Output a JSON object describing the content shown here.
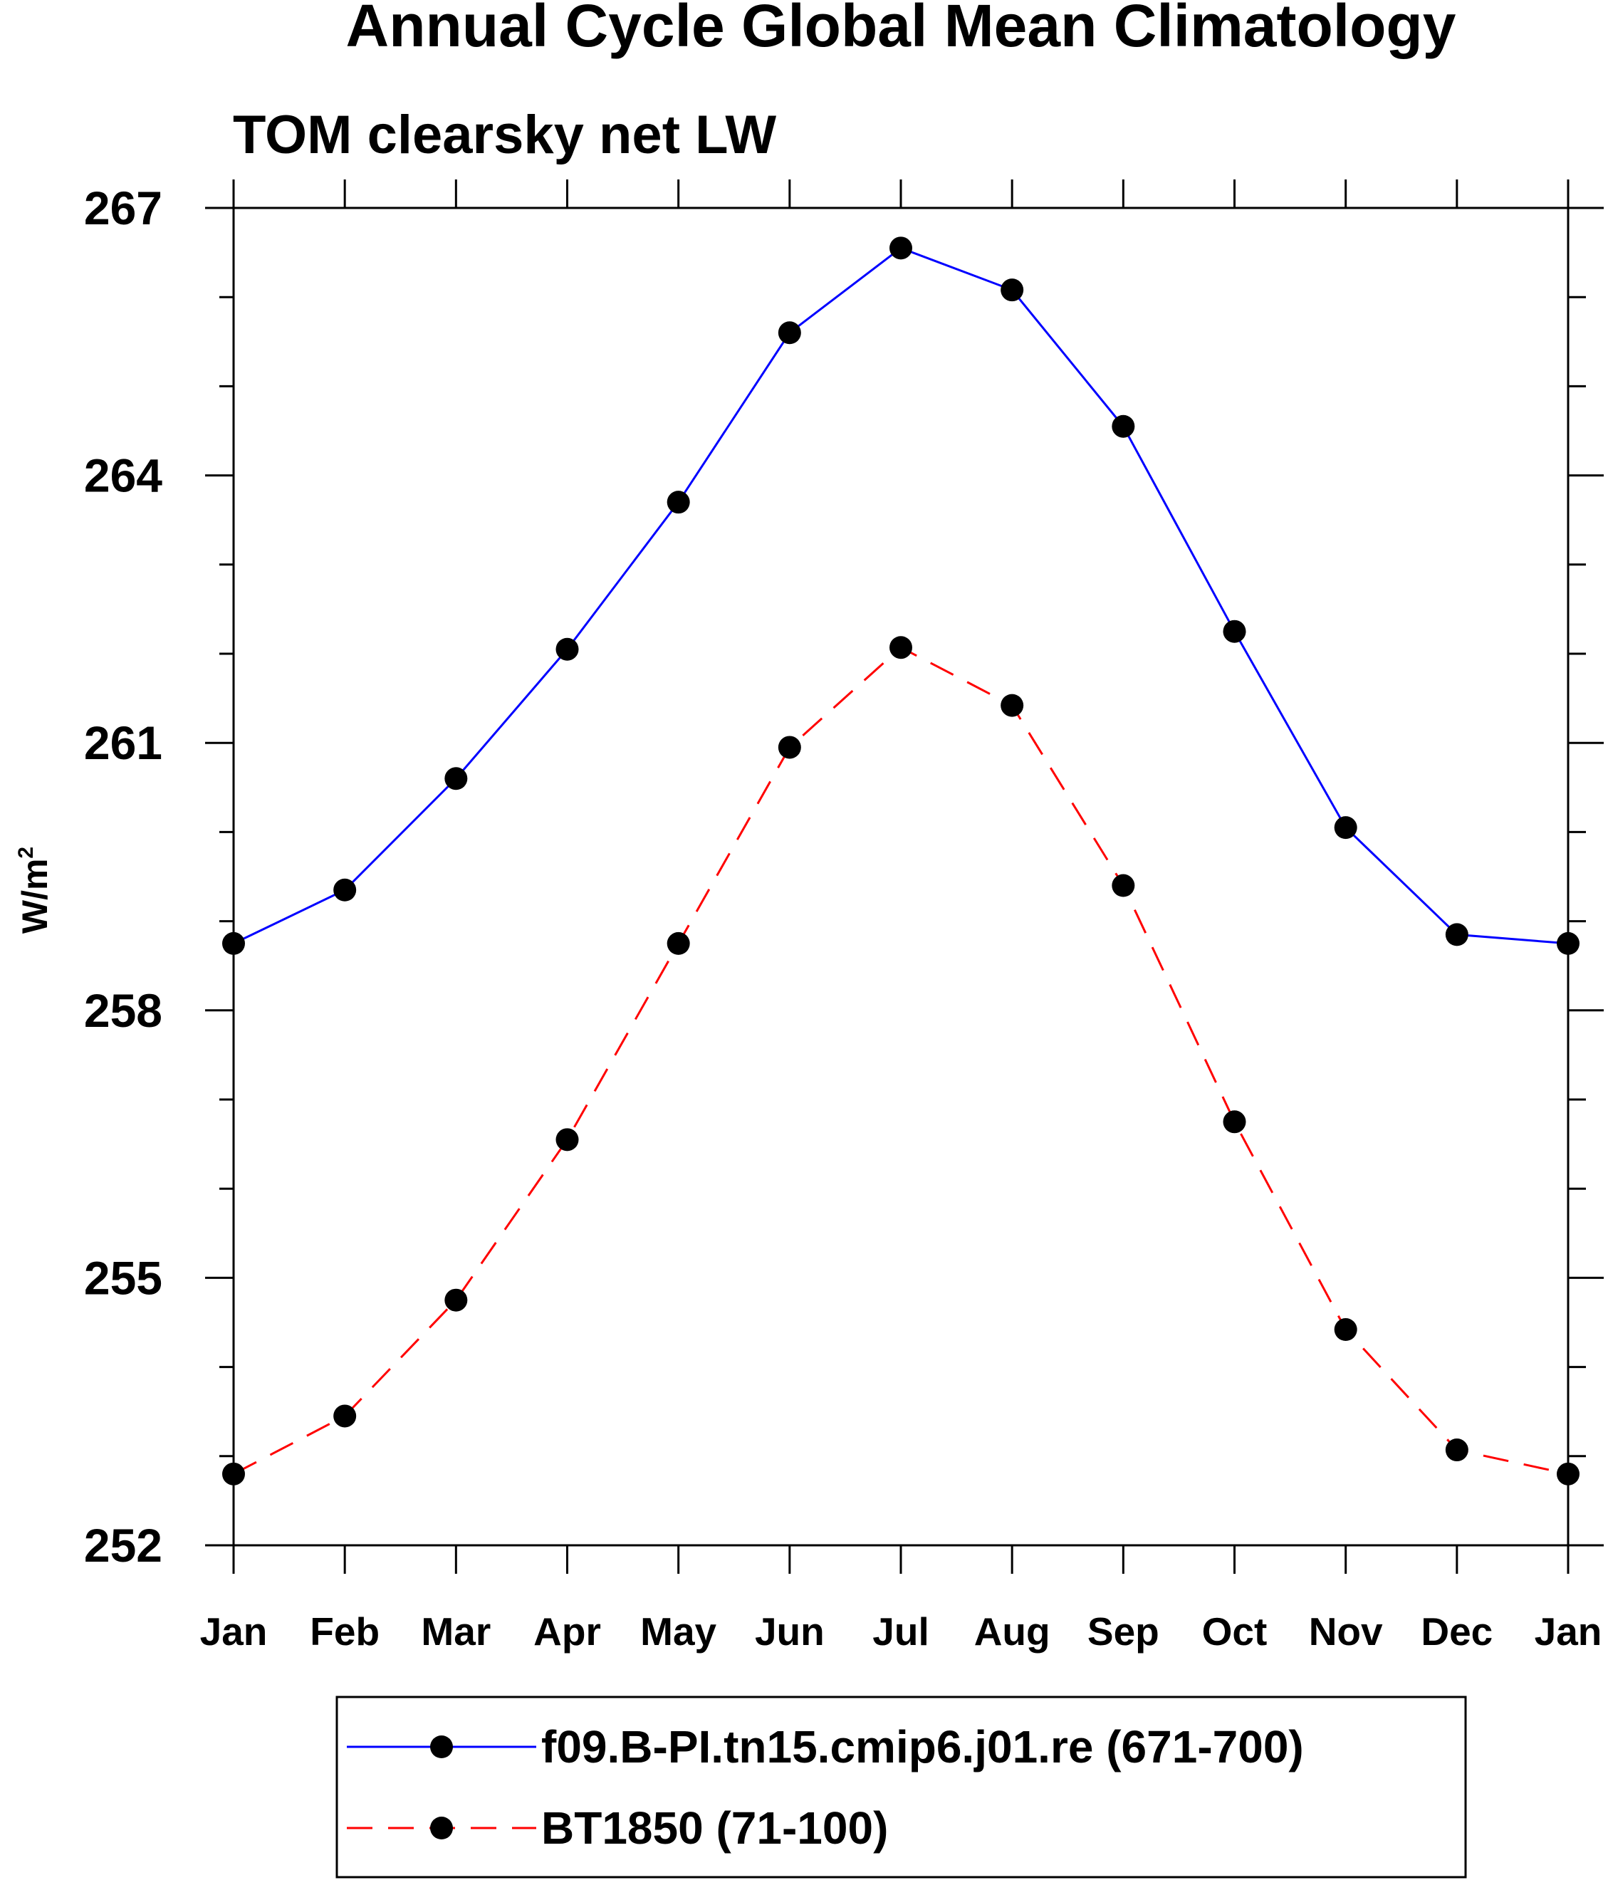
{
  "chart_data": {
    "type": "line",
    "title": "Annual Cycle Global Mean Climatology",
    "subtitle": "TOM clearsky net LW",
    "ylabel": "W/m",
    "ylabel_sup": "2",
    "xlabel": "",
    "categories": [
      "Jan",
      "Feb",
      "Mar",
      "Apr",
      "May",
      "Jun",
      "Jul",
      "Aug",
      "Sep",
      "Oct",
      "Nov",
      "Dec",
      "Jan"
    ],
    "ylim": [
      252,
      267
    ],
    "yticks": [
      "252",
      "255",
      "258",
      "261",
      "264",
      "267"
    ],
    "series": [
      {
        "name": "f09.B-PI.tn15.cmip6.j01.re (671-700)",
        "color": "#0000ff",
        "dash": "solid",
        "values": [
          258.75,
          259.35,
          260.6,
          262.05,
          263.7,
          265.6,
          266.55,
          266.08,
          264.55,
          262.25,
          260.05,
          258.85,
          258.75
        ]
      },
      {
        "name": "BT1850 (71-100)",
        "color": "#ff0000",
        "dash": "dashed",
        "values": [
          252.8,
          253.45,
          254.75,
          256.55,
          258.75,
          260.95,
          262.07,
          261.42,
          259.4,
          256.75,
          254.42,
          253.07,
          252.8
        ]
      }
    ],
    "grid": false,
    "legend_position": "bottom"
  }
}
